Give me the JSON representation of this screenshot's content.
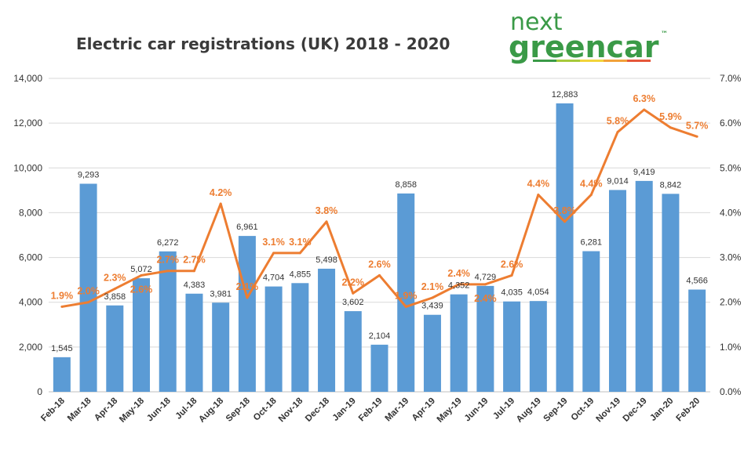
{
  "logo": {
    "line1": "next",
    "line2": "greencar",
    "tm": "™"
  },
  "chart_data": {
    "type": "bar+line",
    "title": "Electric car registrations (UK) 2018 - 2020",
    "categories": [
      "Feb-18",
      "Mar-18",
      "Apr-18",
      "May-18",
      "Jun-18",
      "Jul-18",
      "Aug-18",
      "Sep-18",
      "Oct-18",
      "Nov-18",
      "Dec-18",
      "Jan-19",
      "Feb-19",
      "Mar-19",
      "Apr-19",
      "May-19",
      "Jun-19",
      "Jul-19",
      "Aug-19",
      "Sep-19",
      "Oct-19",
      "Nov-19",
      "Dec-19",
      "Jan-20",
      "Feb-20"
    ],
    "series": [
      {
        "type": "bar",
        "axis": "left",
        "color": "#5B9BD5",
        "values": [
          1545,
          9293,
          3858,
          5072,
          6272,
          4383,
          3981,
          6961,
          4704,
          4855,
          5498,
          3602,
          2104,
          8858,
          3439,
          4352,
          4729,
          4035,
          4054,
          12883,
          6281,
          9014,
          9419,
          8842,
          4566
        ]
      },
      {
        "type": "line",
        "axis": "right",
        "color": "#ED7D31",
        "values": [
          1.9,
          2.0,
          2.3,
          2.6,
          2.7,
          2.7,
          4.2,
          2.1,
          3.1,
          3.1,
          3.8,
          2.2,
          2.6,
          1.9,
          2.1,
          2.4,
          2.4,
          2.6,
          4.4,
          3.8,
          4.4,
          5.8,
          6.3,
          5.9,
          5.7
        ]
      }
    ],
    "ylim_left": [
      0,
      14000
    ],
    "yticks_left": [
      "0",
      "2,000",
      "4,000",
      "6,000",
      "8,000",
      "10,000",
      "12,000",
      "14,000"
    ],
    "ylim_right": [
      0,
      7
    ],
    "yticks_right": [
      "0.0%",
      "1.0%",
      "2.0%",
      "3.0%",
      "4.0%",
      "5.0%",
      "6.0%",
      "7.0%"
    ],
    "grid": true,
    "legend": "none"
  }
}
